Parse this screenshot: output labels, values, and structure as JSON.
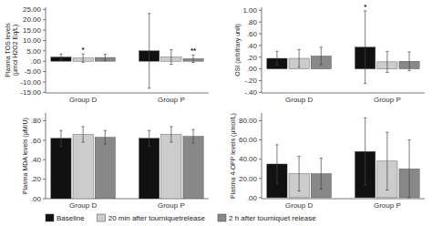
{
  "chart_data": [
    {
      "type": "bar",
      "ylabel": "Plasma TOS levels (μmol H2O2 Eq/L)",
      "categories": [
        "Group D",
        "Group P"
      ],
      "series": [
        {
          "name": "Baseline",
          "color": "#111111",
          "values": [
            2.0,
            5.0
          ],
          "errors": [
            1.5,
            18.0
          ],
          "annotations": [
            null,
            null
          ]
        },
        {
          "name": "20 min after tourniquetrelease",
          "color": "#cccccc",
          "values": [
            1.5,
            2.0
          ],
          "errors": [
            2.0,
            3.5
          ],
          "annotations": [
            "*",
            null
          ]
        },
        {
          "name": "2 h after tourniquet release",
          "color": "#888888",
          "values": [
            1.8,
            1.2
          ],
          "errors": [
            1.5,
            1.8
          ],
          "annotations": [
            null,
            "**"
          ]
        }
      ],
      "ylim": [
        -15.3,
        26
      ],
      "yticks": [
        {
          "value": -15,
          "label": "-15.00"
        },
        {
          "value": -10,
          "label": "-10.00"
        },
        {
          "value": -5,
          "label": "-5.00"
        },
        {
          "value": 0,
          "label": ".00"
        },
        {
          "value": 5,
          "label": "5.00"
        },
        {
          "value": 10,
          "label": "10.00"
        },
        {
          "value": 15,
          "label": "15.00"
        },
        {
          "value": 20,
          "label": "20.00"
        },
        {
          "value": 25,
          "label": "25.00"
        }
      ],
      "legend": "lower left"
    },
    {
      "type": "bar",
      "ylabel": "OSI (arbitrary unit)",
      "categories": [
        "Group D",
        "Group P"
      ],
      "series": [
        {
          "name": "Baseline",
          "color": "#111111",
          "values": [
            0.18,
            0.37
          ],
          "errors": [
            0.12,
            0.62
          ],
          "annotations": [
            null,
            "*"
          ]
        },
        {
          "name": "20 min after tourniquetrelease",
          "color": "#cccccc",
          "values": [
            0.18,
            0.12
          ],
          "errors": [
            0.15,
            0.18
          ],
          "annotations": [
            null,
            null
          ]
        },
        {
          "name": "2 h after tourniquet release",
          "color": "#888888",
          "values": [
            0.22,
            0.13
          ],
          "errors": [
            0.15,
            0.16
          ],
          "annotations": [
            null,
            null
          ]
        }
      ],
      "ylim": [
        -0.41,
        1.05
      ],
      "yticks": [
        {
          "value": -0.4,
          "label": "-.40"
        },
        {
          "value": -0.2,
          "label": "-.20"
        },
        {
          "value": 0,
          "label": ".00"
        },
        {
          "value": 0.2,
          "label": ".20"
        },
        {
          "value": 0.4,
          "label": ".40"
        },
        {
          "value": 0.6,
          "label": ".60"
        },
        {
          "value": 0.8,
          "label": ".80"
        },
        {
          "value": 1.0,
          "label": "1.00"
        }
      ]
    },
    {
      "type": "bar",
      "ylabel": "Plasma MDA levels (μM/U)",
      "categories": [
        "Group D",
        "Group P"
      ],
      "series": [
        {
          "name": "Baseline",
          "color": "#111111",
          "values": [
            0.62,
            0.62
          ],
          "errors": [
            0.08,
            0.08
          ],
          "annotations": [
            null,
            null
          ]
        },
        {
          "name": "20 min after tourniquetrelease",
          "color": "#cccccc",
          "values": [
            0.66,
            0.66
          ],
          "errors": [
            0.08,
            0.08
          ],
          "annotations": [
            null,
            null
          ]
        },
        {
          "name": "2 h after tourniquet release",
          "color": "#888888",
          "values": [
            0.63,
            0.64
          ],
          "errors": [
            0.07,
            0.07
          ],
          "annotations": [
            null,
            null
          ]
        }
      ],
      "ylim": [
        0.0,
        0.88
      ],
      "yticks": [
        {
          "value": 0,
          "label": ".00"
        },
        {
          "value": 0.2,
          "label": ".20"
        },
        {
          "value": 0.4,
          "label": ".40"
        },
        {
          "value": 0.6,
          "label": ".60"
        },
        {
          "value": 0.8,
          "label": ".80"
        }
      ]
    },
    {
      "type": "bar",
      "ylabel": "Plasma 4-OPP levels (μmol/L)",
      "categories": [
        "Group D",
        "Group P"
      ],
      "series": [
        {
          "name": "Baseline",
          "color": "#111111",
          "values": [
            35,
            48
          ],
          "errors": [
            20,
            35
          ],
          "annotations": [
            null,
            null
          ]
        },
        {
          "name": "20 min after tourniquetrelease",
          "color": "#cccccc",
          "values": [
            25,
            38
          ],
          "errors": [
            18,
            30
          ],
          "annotations": [
            null,
            null
          ]
        },
        {
          "name": "2 h after tourniquet release",
          "color": "#888888",
          "values": [
            25,
            30
          ],
          "errors": [
            16,
            30
          ],
          "annotations": [
            null,
            null
          ]
        }
      ],
      "ylim": [
        -1,
        88
      ],
      "yticks": [
        {
          "value": 0,
          "label": ".00"
        },
        {
          "value": 20,
          "label": "20.00"
        },
        {
          "value": 40,
          "label": "40.00"
        },
        {
          "value": 60,
          "label": "60.00"
        },
        {
          "value": 80,
          "label": "80.00"
        }
      ]
    }
  ]
}
